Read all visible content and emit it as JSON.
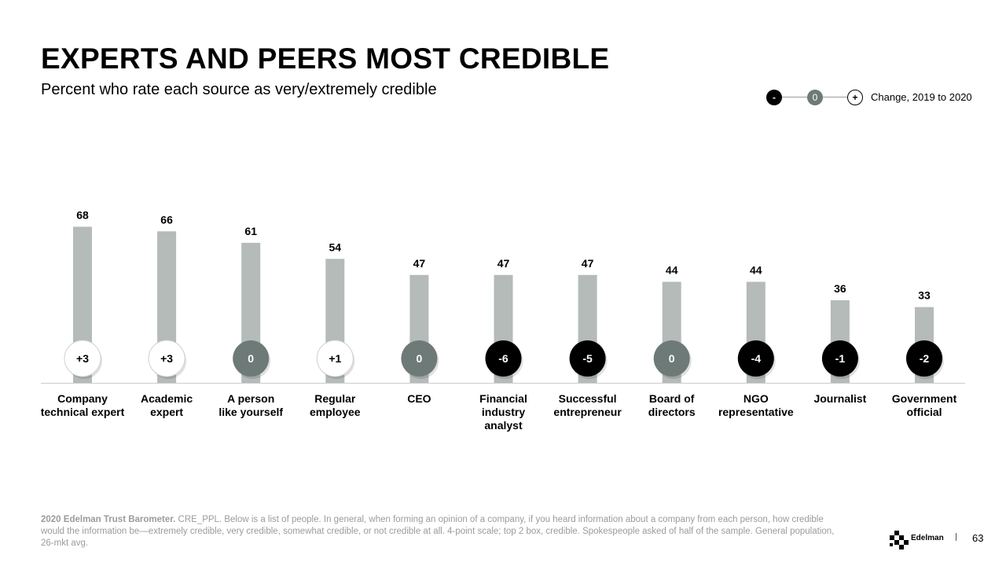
{
  "title": "EXPERTS AND PEERS MOST CREDIBLE",
  "subtitle": "Percent who rate each source as very/extremely credible",
  "legend": {
    "minus_symbol": "-",
    "zero_symbol": "0",
    "plus_symbol": "+",
    "label": "Change, 2019 to 2020"
  },
  "chart_data": {
    "type": "bar",
    "categories": [
      [
        "Company",
        "technical expert"
      ],
      [
        "Academic",
        "expert"
      ],
      [
        "A person",
        "like yourself"
      ],
      [
        "Regular",
        "employee"
      ],
      [
        "CEO"
      ],
      [
        "Financial",
        "industry",
        "analyst"
      ],
      [
        "Successful",
        "entrepreneur"
      ],
      [
        "Board of",
        "directors"
      ],
      [
        "NGO",
        "representative"
      ],
      [
        "Journalist"
      ],
      [
        "Government",
        "official"
      ]
    ],
    "values": [
      68,
      66,
      61,
      54,
      47,
      47,
      47,
      44,
      44,
      36,
      33
    ],
    "changes": [
      "+3",
      "+3",
      "0",
      "+1",
      "0",
      "-6",
      "-5",
      "0",
      "-4",
      "-1",
      "-2"
    ],
    "colors": {
      "bar": "#b4bbb8",
      "positive": "#ffffff",
      "zero": "#6e7a78",
      "negative": "#000000",
      "axis": "#cccccc"
    }
  },
  "footnote": {
    "source": "2020 Edelman Trust Barometer.",
    "text": "CRE_PPL. Below is a list of people. In general, when forming an opinion of a company, if you heard information about a company from each person, how credible would the information be—extremely credible, very credible, somewhat credible, or not credible at all. 4-point scale; top 2 box, credible. Spokespeople asked of half of the sample. General population, 26-mkt avg."
  },
  "brand": "Edelman",
  "page_number": "63"
}
